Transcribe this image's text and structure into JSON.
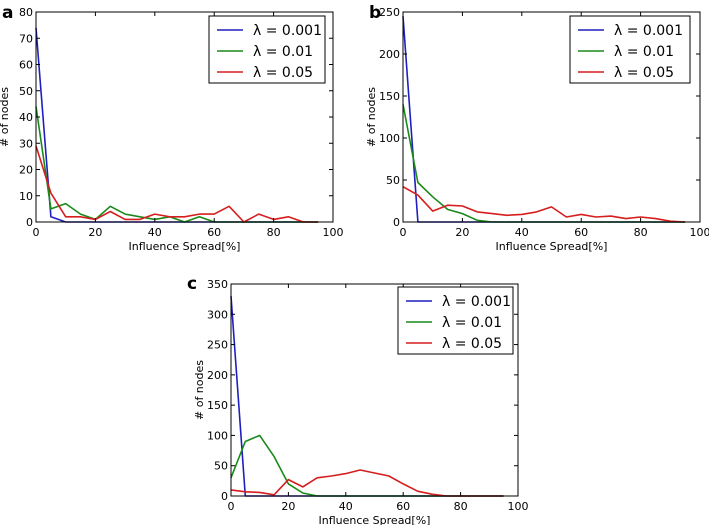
{
  "chart_data": [
    {
      "panel": "a",
      "type": "line",
      "xlabel": "Influence Spread[%]",
      "ylabel": "# of nodes",
      "xlim": [
        0,
        100
      ],
      "ylim": [
        0,
        80
      ],
      "xticks": [
        "0",
        "20",
        "40",
        "60",
        "80",
        "100"
      ],
      "yticks": [
        "0",
        "10",
        "20",
        "30",
        "40",
        "50",
        "60",
        "70",
        "80"
      ],
      "x": [
        0,
        5,
        10,
        15,
        20,
        25,
        30,
        35,
        40,
        45,
        50,
        55,
        60,
        65,
        70,
        75,
        80,
        85,
        90,
        95
      ],
      "series": [
        {
          "name": "λ = 0.001",
          "color": "#1f1fbf",
          "values": [
            74,
            2,
            0,
            0,
            0,
            0,
            0,
            0,
            0,
            0,
            0,
            0,
            0,
            0,
            0,
            0,
            0,
            0,
            0,
            0
          ]
        },
        {
          "name": "λ = 0.01",
          "color": "#1a8a1a",
          "values": [
            44,
            5,
            7,
            3,
            1,
            6,
            3,
            2,
            1,
            2,
            0,
            2,
            0,
            0,
            0,
            0,
            0,
            0,
            0,
            0
          ]
        },
        {
          "name": "λ = 0.05",
          "color": "#d61e1e",
          "values": [
            29,
            11,
            2,
            2,
            1,
            4,
            1,
            1,
            3,
            2,
            2,
            3,
            3,
            6,
            0,
            3,
            1,
            2,
            0,
            0
          ]
        }
      ],
      "legend": "top-right"
    },
    {
      "panel": "b",
      "type": "line",
      "xlabel": "Influence Spread[%]",
      "ylabel": "# of nodes",
      "xlim": [
        0,
        100
      ],
      "ylim": [
        0,
        250
      ],
      "xticks": [
        "0",
        "20",
        "40",
        "60",
        "80",
        "100"
      ],
      "yticks": [
        "0",
        "50",
        "100",
        "150",
        "200",
        "250"
      ],
      "x": [
        0,
        5,
        10,
        15,
        20,
        25,
        30,
        35,
        40,
        45,
        50,
        55,
        60,
        65,
        70,
        75,
        80,
        85,
        90,
        95
      ],
      "series": [
        {
          "name": "λ = 0.001",
          "color": "#1f1fbf",
          "values": [
            245,
            0,
            0,
            0,
            0,
            0,
            0,
            0,
            0,
            0,
            0,
            0,
            0,
            0,
            0,
            0,
            0,
            0,
            0,
            0
          ]
        },
        {
          "name": "λ = 0.01",
          "color": "#1a8a1a",
          "values": [
            140,
            47,
            30,
            15,
            10,
            2,
            0,
            0,
            0,
            0,
            0,
            0,
            0,
            0,
            0,
            0,
            0,
            0,
            0,
            0
          ]
        },
        {
          "name": "λ = 0.05",
          "color": "#d61e1e",
          "values": [
            42,
            32,
            13,
            20,
            19,
            12,
            10,
            8,
            9,
            12,
            18,
            6,
            9,
            6,
            7,
            4,
            6,
            4,
            1,
            0
          ]
        }
      ],
      "legend": "top-right"
    },
    {
      "panel": "c",
      "type": "line",
      "xlabel": "Influence Spread[%]",
      "ylabel": "# of nodes",
      "xlim": [
        0,
        100
      ],
      "ylim": [
        0,
        350
      ],
      "xticks": [
        "0",
        "20",
        "40",
        "60",
        "80",
        "100"
      ],
      "yticks": [
        "0",
        "50",
        "100",
        "150",
        "200",
        "250",
        "300",
        "350"
      ],
      "x": [
        0,
        5,
        10,
        15,
        20,
        25,
        30,
        35,
        40,
        45,
        50,
        55,
        60,
        65,
        70,
        75,
        80,
        85,
        90,
        95
      ],
      "series": [
        {
          "name": "λ = 0.001",
          "color": "#1f1fbf",
          "values": [
            330,
            0,
            0,
            0,
            0,
            0,
            0,
            0,
            0,
            0,
            0,
            0,
            0,
            0,
            0,
            0,
            0,
            0,
            0,
            0
          ]
        },
        {
          "name": "λ = 0.01",
          "color": "#1a8a1a",
          "values": [
            30,
            90,
            100,
            65,
            20,
            5,
            0,
            0,
            0,
            0,
            0,
            0,
            0,
            0,
            0,
            0,
            0,
            0,
            0,
            0
          ]
        },
        {
          "name": "λ = 0.05",
          "color": "#d61e1e",
          "values": [
            10,
            7,
            6,
            2,
            27,
            15,
            30,
            33,
            37,
            43,
            38,
            33,
            20,
            8,
            3,
            0,
            0,
            0,
            0,
            0
          ]
        }
      ],
      "legend": "top-right"
    }
  ]
}
